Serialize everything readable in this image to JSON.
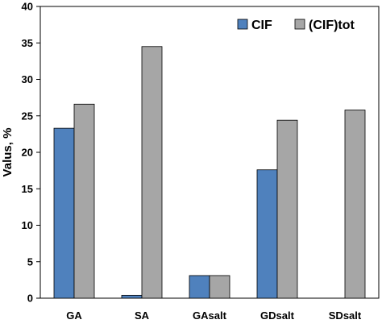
{
  "chart_data": {
    "type": "bar",
    "categories": [
      "GA",
      "SA",
      "GAsalt",
      "GDsalt",
      "SDsalt"
    ],
    "series": [
      {
        "name": "CIF",
        "color": "#4f81bd",
        "values": [
          23.3,
          0.4,
          3.1,
          17.6,
          0
        ]
      },
      {
        "name": "(CIF)tot",
        "color": "#a6a6a6",
        "values": [
          26.6,
          34.5,
          3.1,
          24.4,
          25.8
        ]
      }
    ],
    "ylabel": "Valus, %",
    "xlabel": "",
    "ylim": [
      0,
      40
    ],
    "yticks": [
      0,
      5,
      10,
      15,
      20,
      25,
      30,
      35,
      40
    ],
    "grid": false,
    "legend_position": "top-right"
  }
}
